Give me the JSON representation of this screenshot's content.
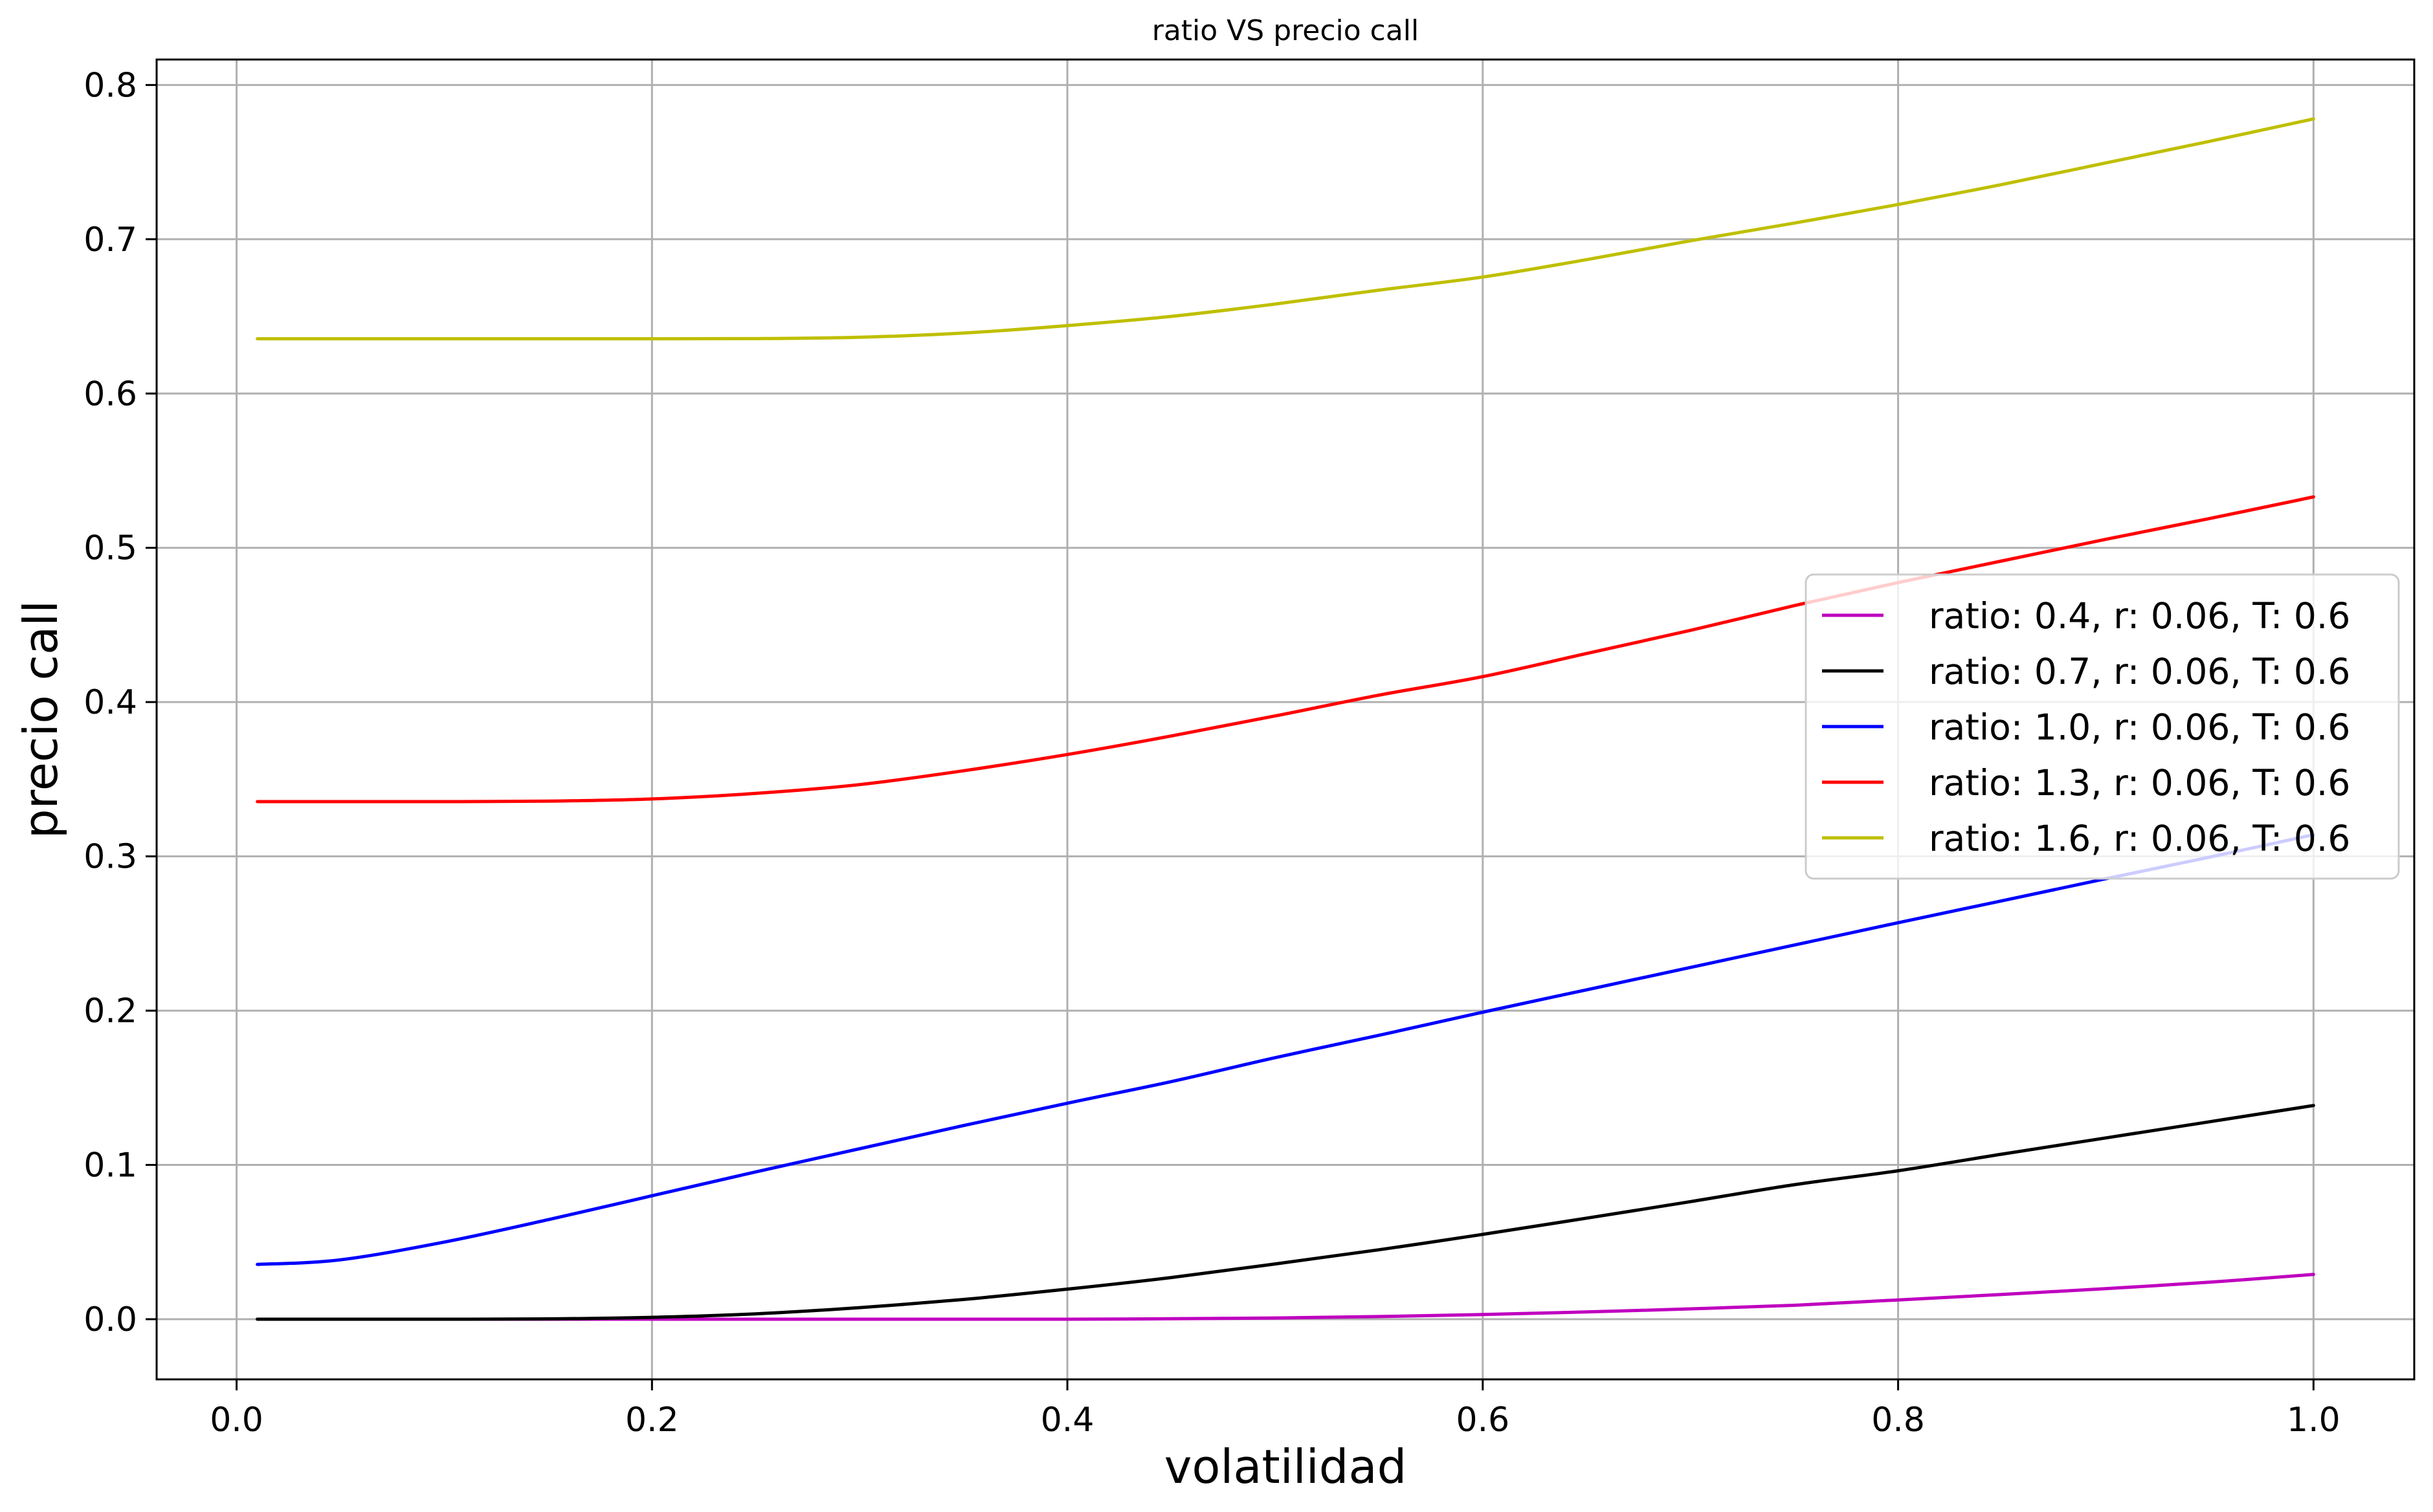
{
  "chart_data": {
    "type": "line",
    "title": "ratio VS precio call",
    "xlabel": "volatilidad",
    "ylabel": "precio call",
    "xlim": [
      -0.0385,
      1.0485
    ],
    "ylim": [
      -0.039,
      0.8165
    ],
    "xticks": [
      0.0,
      0.2,
      0.4,
      0.6,
      0.8,
      1.0
    ],
    "xtick_labels": [
      "0.0",
      "0.2",
      "0.4",
      "0.6",
      "0.8",
      "1.0"
    ],
    "yticks": [
      0.0,
      0.1,
      0.2,
      0.3,
      0.4,
      0.5,
      0.6,
      0.7,
      0.8
    ],
    "ytick_labels": [
      "0.0",
      "0.1",
      "0.2",
      "0.3",
      "0.4",
      "0.5",
      "0.6",
      "0.7",
      "0.8"
    ],
    "grid": true,
    "legend_position": "center-right",
    "x": [
      0.01,
      0.05,
      0.1,
      0.15,
      0.2,
      0.25,
      0.3,
      0.35,
      0.4,
      0.45,
      0.5,
      0.55,
      0.6,
      0.65,
      0.7,
      0.75,
      0.8,
      0.85,
      0.9,
      0.95,
      1.0
    ],
    "series": [
      {
        "name": "ratio: 0.4, r: 0.06, T: 0.6",
        "color": "#bf00bf",
        "values": [
          0.0,
          0.0,
          0.0,
          0.0,
          0.0,
          0.0,
          0.0,
          0.0,
          0.0,
          0.0003,
          0.0008,
          0.0017,
          0.003,
          0.0047,
          0.0067,
          0.009,
          0.0125,
          0.016,
          0.0198,
          0.024,
          0.029
        ]
      },
      {
        "name": "ratio: 0.7, r: 0.06, T: 0.6",
        "color": "#000000",
        "values": [
          0.0,
          0.0,
          0.0,
          0.0002,
          0.0012,
          0.0035,
          0.0075,
          0.0128,
          0.0195,
          0.027,
          0.0358,
          0.045,
          0.055,
          0.0655,
          0.0762,
          0.0872,
          0.0962,
          0.107,
          0.1175,
          0.128,
          0.1385
        ]
      },
      {
        "name": "ratio: 1.0, r: 0.06, T: 0.6",
        "color": "#0000ff",
        "values": [
          0.0355,
          0.0385,
          0.05,
          0.0645,
          0.08,
          0.0955,
          0.1105,
          0.1255,
          0.14,
          0.154,
          0.1695,
          0.184,
          0.199,
          0.2135,
          0.228,
          0.2425,
          0.257,
          0.2712,
          0.2855,
          0.2995,
          0.314
        ]
      },
      {
        "name": "ratio: 1.3, r: 0.06, T: 0.6",
        "color": "#ff0000",
        "values": [
          0.3355,
          0.3355,
          0.3355,
          0.3358,
          0.3372,
          0.3408,
          0.3465,
          0.3555,
          0.366,
          0.378,
          0.391,
          0.4045,
          0.4165,
          0.4315,
          0.4465,
          0.4625,
          0.4775,
          0.4915,
          0.5055,
          0.519,
          0.533
        ]
      },
      {
        "name": "ratio: 1.6, r: 0.06, T: 0.6",
        "color": "#bfbf00",
        "values": [
          0.6355,
          0.6355,
          0.6355,
          0.6355,
          0.6355,
          0.6356,
          0.6365,
          0.6392,
          0.644,
          0.65,
          0.658,
          0.667,
          0.6755,
          0.6868,
          0.699,
          0.7105,
          0.7225,
          0.7355,
          0.7495,
          0.7635,
          0.778
        ]
      }
    ]
  }
}
